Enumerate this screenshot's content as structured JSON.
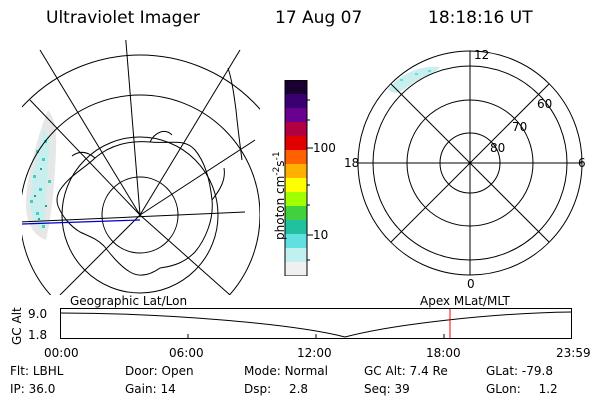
{
  "header": {
    "title": "Ultraviolet Imager",
    "date": "17 Aug 07",
    "time": "18:18:16 UT"
  },
  "left_map": {
    "label": "Geographic Lat/Lon"
  },
  "colorbar": {
    "unit_main": "photon cm",
    "unit_sup1": "-2",
    "unit_mid": "s",
    "unit_sup2": "-1",
    "tick_100": "100",
    "tick_10": "10",
    "colors": [
      "#1a0030",
      "#3a0070",
      "#6a0090",
      "#b00040",
      "#e00000",
      "#ff6000",
      "#ffb000",
      "#ffff00",
      "#a0ff00",
      "#40d040",
      "#20c0a0",
      "#60e0e0",
      "#c0f0f0",
      "#f0f0f0"
    ]
  },
  "right_polar": {
    "label": "Apex MLat/MLT",
    "mlt_12": "12",
    "mlt_18": "18",
    "mlt_6": "6",
    "mlt_0": "0",
    "lat_60": "60",
    "lat_70": "70",
    "lat_80": "80"
  },
  "alt_plot": {
    "ylabel": "GC Alt",
    "ytick_top": "9.0",
    "ytick_bottom": "1.8",
    "xticks": [
      "00:00",
      "06:00",
      "12:00",
      "18:00",
      "23:59"
    ],
    "marker_time": "18:18",
    "curve_color": "#000000",
    "marker_color": "#ff0000"
  },
  "info": {
    "filter_label": "Flt:",
    "filter_value": "LBHL",
    "door_label": "Door:",
    "door_value": "Open",
    "mode_label": "Mode:",
    "mode_value": "Normal",
    "gcalt_label": "GC Alt:",
    "gcalt_value": "7.4 Re",
    "glat_label": "GLat:",
    "glat_value": "-79.8",
    "ip_label": "IP:",
    "ip_value": "36.0",
    "gain_label": "Gain:",
    "gain_value": "14",
    "dsp_label": "Dsp:",
    "dsp_value": "2.8",
    "seq_label": "Seq:",
    "seq_value": "39",
    "glon_label": "GLon:",
    "glon_value": "1.2"
  }
}
